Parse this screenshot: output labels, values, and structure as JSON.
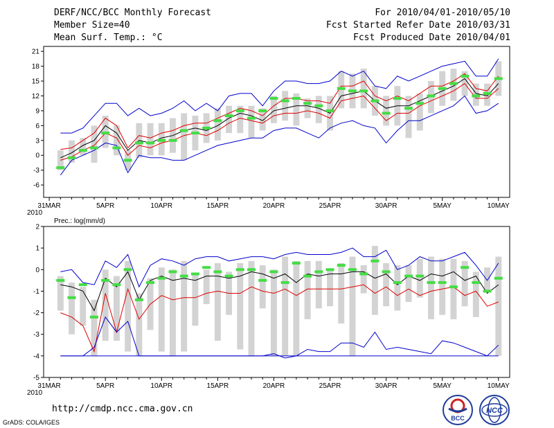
{
  "header": {
    "title": "DERF/NCC/BCC Monthly Forecast",
    "member_size": "Member Size=40",
    "variable": "Mean Surf. Temp.: °C",
    "period": "For 2010/04/01-2010/05/10",
    "started": "Fcst Started Refer Date 2010/03/31",
    "produced": "Fcst Produced Date 2010/04/01"
  },
  "footer": {
    "url": "http://cmdp.ncc.cma.gov.cn",
    "credit": "GrADS: COLA/IGES",
    "logo_left_text": "BCC",
    "logo_right_text": "NCC"
  },
  "colors": {
    "box": "#d3d3d3",
    "max_line": "#0000cc",
    "spread_line": "#dd0000",
    "mean_line": "#000000",
    "obs_marker": "#44dd44"
  },
  "chart_data": [
    {
      "type": "line",
      "title": "Mean Surf. Temp.: °C",
      "x_tick_labels": [
        "31MAR\n2010",
        "5APR",
        "10APR",
        "15APR",
        "20APR",
        "25APR",
        "30APR",
        "5MAY",
        "10MAY"
      ],
      "x_tick_days": [
        0,
        5,
        10,
        15,
        20,
        25,
        30,
        35,
        40
      ],
      "y_ticks": [
        -6,
        -3,
        0,
        3,
        6,
        9,
        12,
        15,
        18,
        21
      ],
      "ylim": [
        -8.5,
        22
      ],
      "xlim": [
        -0.5,
        41
      ],
      "days": [
        1,
        2,
        3,
        4,
        5,
        6,
        7,
        8,
        9,
        10,
        11,
        12,
        13,
        14,
        15,
        16,
        17,
        18,
        19,
        20,
        21,
        22,
        23,
        24,
        25,
        26,
        27,
        28,
        29,
        30,
        31,
        32,
        33,
        34,
        35,
        36,
        37,
        38,
        39,
        40
      ],
      "series": [
        {
          "name": "max",
          "values": [
            4.5,
            4.5,
            5.5,
            8,
            10.5,
            10.5,
            8,
            9.5,
            8,
            8.5,
            9.5,
            11,
            9,
            10.5,
            9,
            12,
            12.5,
            12.5,
            10,
            13,
            15,
            15,
            14.5,
            14.5,
            15,
            17,
            16,
            17,
            14,
            13.5,
            16,
            15,
            16,
            17,
            18,
            18.5,
            19,
            16,
            16,
            19.5
          ]
        },
        {
          "name": "upper",
          "values": [
            1.2,
            1.5,
            3,
            4.5,
            7.5,
            6,
            1.5,
            4,
            3.5,
            4.5,
            5,
            6,
            6.5,
            6.5,
            7.5,
            8.5,
            9.5,
            9,
            8,
            10,
            11.5,
            11.5,
            11,
            11,
            10.5,
            14,
            14,
            15,
            12,
            11,
            12,
            11,
            12.5,
            14,
            14,
            15,
            16.5,
            13.5,
            13,
            16
          ]
        },
        {
          "name": "mean",
          "values": [
            -0.5,
            0.5,
            2,
            3,
            6,
            4.5,
            1,
            3,
            2.5,
            3.5,
            4,
            5,
            5.5,
            5,
            6,
            7.5,
            8.5,
            8,
            7,
            9,
            9.5,
            10,
            10,
            9.5,
            8.5,
            12,
            12.5,
            13,
            11,
            9.5,
            10,
            10,
            11,
            12,
            13,
            14,
            15.5,
            12.5,
            12,
            14.5
          ]
        },
        {
          "name": "lower",
          "values": [
            -1,
            -0.3,
            1,
            2,
            4.5,
            3.5,
            0,
            2,
            1.5,
            2.5,
            3,
            4,
            4.5,
            4,
            5,
            6.5,
            7.5,
            7,
            6.5,
            8,
            8.5,
            8.5,
            9,
            8.5,
            7.5,
            11,
            11.5,
            12,
            9.5,
            7,
            8.5,
            8.5,
            10,
            11,
            12,
            13,
            14.5,
            11.5,
            11.5,
            13.5
          ]
        },
        {
          "name": "min",
          "values": [
            -4,
            -1,
            0,
            1,
            2.5,
            2,
            -3.5,
            0,
            -0.5,
            -0.5,
            -1,
            -1,
            0,
            1,
            2,
            2.5,
            3,
            3.5,
            3.5,
            5,
            5.5,
            5.5,
            4.5,
            3.5,
            5.5,
            6.5,
            7,
            6,
            5.5,
            2.5,
            5,
            7,
            7,
            8,
            9,
            10,
            12,
            8.5,
            9,
            10.5
          ]
        }
      ],
      "box_ranges": [
        [
          -3,
          1
        ],
        [
          -1.5,
          3
        ],
        [
          0,
          3.5
        ],
        [
          -1.5,
          6
        ],
        [
          1.5,
          8
        ],
        [
          0,
          6
        ],
        [
          -3,
          1
        ],
        [
          -0.5,
          6.5
        ],
        [
          0,
          6.5
        ],
        [
          0,
          6.5
        ],
        [
          0.5,
          7.5
        ],
        [
          -1,
          8.5
        ],
        [
          1,
          8
        ],
        [
          2.5,
          8.5
        ],
        [
          3,
          9.5
        ],
        [
          4.5,
          10
        ],
        [
          4.5,
          10
        ],
        [
          3.5,
          10
        ],
        [
          5,
          9.5
        ],
        [
          6.5,
          12
        ],
        [
          7,
          13
        ],
        [
          6,
          12.5
        ],
        [
          7.5,
          11.5
        ],
        [
          6.5,
          12
        ],
        [
          5,
          12
        ],
        [
          9.5,
          17
        ],
        [
          9.5,
          16.5
        ],
        [
          9.5,
          17.5
        ],
        [
          8,
          14
        ],
        [
          6,
          12
        ],
        [
          6,
          14
        ],
        [
          3.5,
          12
        ],
        [
          5,
          12.5
        ],
        [
          8.5,
          15
        ],
        [
          10,
          17
        ],
        [
          11,
          17.5
        ],
        [
          12,
          17
        ],
        [
          10,
          14.5
        ],
        [
          10,
          14.5
        ],
        [
          12,
          19
        ]
      ],
      "observed": [
        -2.5,
        -0.5,
        1,
        1.5,
        4.5,
        1.5,
        -1,
        2.5,
        2.5,
        3,
        3,
        5,
        4.5,
        5.5,
        7,
        8,
        9,
        7.5,
        9,
        11.5,
        11,
        11.5,
        10.5,
        10,
        9,
        13.5,
        13,
        13,
        11,
        8.5,
        11.5,
        9.5,
        10.5,
        12,
        13.5,
        14.5,
        16,
        12,
        12.5,
        15.5
      ]
    },
    {
      "type": "line",
      "title": "Prec.: log(mm/d)",
      "x_tick_labels": [
        "31MAR\n2010",
        "5APR",
        "10APR",
        "15APR",
        "20APR",
        "25APR",
        "30APR",
        "5MAY",
        "10MAY"
      ],
      "x_tick_days": [
        0,
        5,
        10,
        15,
        20,
        25,
        30,
        35,
        40
      ],
      "y_ticks": [
        -5,
        -4,
        -3,
        -2,
        -1,
        0,
        1,
        2
      ],
      "ylim": [
        -5,
        2
      ],
      "xlim": [
        -0.5,
        41
      ],
      "days": [
        1,
        2,
        3,
        4,
        5,
        6,
        7,
        8,
        9,
        10,
        11,
        12,
        13,
        14,
        15,
        16,
        17,
        18,
        19,
        20,
        21,
        22,
        23,
        24,
        25,
        26,
        27,
        28,
        29,
        30,
        31,
        32,
        33,
        34,
        35,
        36,
        37,
        38,
        39,
        40
      ],
      "series": [
        {
          "name": "max",
          "values": [
            -0.1,
            0,
            -0.6,
            -0.7,
            0.4,
            0.1,
            0.7,
            -0.8,
            0.2,
            0.5,
            0.4,
            0.2,
            0.5,
            0.6,
            0.6,
            0.4,
            0.5,
            0.6,
            0.6,
            0.5,
            0.7,
            0.8,
            0.7,
            0.7,
            0.7,
            0.8,
            1,
            0.6,
            0.6,
            0.9,
            0,
            0.2,
            0.6,
            0.4,
            0.4,
            0.6,
            0.8,
            0.2,
            -0.5,
            0.3
          ]
        },
        {
          "name": "mean",
          "values": [
            -0.7,
            -0.8,
            -1,
            -1.9,
            -0.4,
            -0.8,
            -0.1,
            -1.4,
            -0.5,
            -0.3,
            -0.5,
            -0.4,
            -0.5,
            -0.3,
            -0.3,
            -0.4,
            -0.3,
            -0.1,
            -0.2,
            -0.4,
            -0.2,
            -0.6,
            -0.2,
            -0.3,
            -0.2,
            -0.2,
            -0.1,
            -0.1,
            -0.4,
            -0.2,
            -0.7,
            -0.3,
            -0.5,
            -0.2,
            -0.3,
            -0.1,
            -0.5,
            -0.3,
            -1.1,
            -0.7
          ]
        },
        {
          "name": "lower",
          "values": [
            -2,
            -2.2,
            -2.6,
            -3.8,
            -1.1,
            -2.9,
            -0.9,
            -2.3,
            -1.6,
            -1.2,
            -1.4,
            -1.3,
            -1.3,
            -1.1,
            -1,
            -1.1,
            -1.1,
            -0.8,
            -1,
            -1.1,
            -0.9,
            -1.2,
            -0.9,
            -0.9,
            -0.9,
            -0.9,
            -0.8,
            -0.7,
            -1.1,
            -0.8,
            -1.2,
            -0.9,
            -1.2,
            -1,
            -0.9,
            -0.8,
            -1.2,
            -1,
            -1.7,
            -1.5
          ]
        },
        {
          "name": "min",
          "values": [
            -4,
            -4,
            -4,
            -3.6,
            -2.2,
            -2.9,
            -2.4,
            -4,
            -4,
            -4,
            -4,
            -4,
            -4,
            -4,
            -4,
            -4,
            -4,
            -4,
            -4,
            -3.9,
            -4.1,
            -4,
            -3.7,
            -3.8,
            -3.8,
            -3.4,
            -3.4,
            -3.6,
            -2.9,
            -3.7,
            -3.6,
            -3.7,
            -3.8,
            -3.9,
            -3.3,
            -3.4,
            -3.6,
            -3.8,
            -4,
            -3.5
          ]
        },
        {
          "name": "floor",
          "values": [
            -4,
            -4,
            -4,
            -4,
            -4,
            -4,
            -4,
            -4,
            -4,
            -4,
            -4,
            -4,
            -4,
            -4,
            -4,
            -4,
            -4,
            -4,
            -4,
            -4,
            -4,
            -4,
            -4,
            -4,
            -4,
            -4,
            -4,
            -4,
            -4,
            -4,
            -4,
            -4,
            -4,
            -4,
            -4,
            -4,
            -4,
            -4,
            -4,
            -4
          ]
        }
      ],
      "box_ranges": [
        [
          -1.9,
          -0.3
        ],
        [
          -3,
          -0.6
        ],
        [
          -2.6,
          -0.8
        ],
        [
          -4,
          -1.4
        ],
        [
          -3.3,
          0
        ],
        [
          -3.3,
          -0.3
        ],
        [
          -3.8,
          0.4
        ],
        [
          -4,
          -1.1
        ],
        [
          -2.8,
          -0.4
        ],
        [
          -3.8,
          0.1
        ],
        [
          -4,
          0
        ],
        [
          -3.8,
          0.4
        ],
        [
          -2.6,
          -0.2
        ],
        [
          -1.6,
          0
        ],
        [
          -3.3,
          0.3
        ],
        [
          -2.1,
          -0.1
        ],
        [
          -3.7,
          0.3
        ],
        [
          -4,
          0.4
        ],
        [
          -1.8,
          0.2
        ],
        [
          -4,
          0
        ],
        [
          -4,
          0.6
        ],
        [
          -4,
          0.4
        ],
        [
          -2.3,
          0.4
        ],
        [
          -1.8,
          0.4
        ],
        [
          -1.7,
          0
        ],
        [
          -2.5,
          0.3
        ],
        [
          -4,
          0.6
        ],
        [
          -1.1,
          0.2
        ],
        [
          -2.1,
          1.1
        ],
        [
          -1.7,
          0.3
        ],
        [
          -1.9,
          0.2
        ],
        [
          -1.5,
          0.2
        ],
        [
          -1.3,
          0.5
        ],
        [
          -2.3,
          0.6
        ],
        [
          -2.1,
          0.5
        ],
        [
          -2.3,
          0.5
        ],
        [
          -1.7,
          0.4
        ],
        [
          -2.2,
          -0.1
        ],
        [
          -1,
          0.1
        ],
        [
          -4,
          0.6
        ]
      ],
      "observed": [
        -0.5,
        -1.3,
        -0.7,
        -2.2,
        -0.5,
        -0.7,
        0,
        -1.4,
        -0.6,
        -0.4,
        -0.1,
        -0.3,
        -0.2,
        0.1,
        -0.1,
        -0.3,
        0,
        0,
        -0.5,
        -0.1,
        -0.6,
        0.3,
        -0.3,
        -0.1,
        0,
        0.2,
        0,
        -0.2,
        0.4,
        -0.1,
        -0.6,
        -0.3,
        -0.3,
        -0.6,
        -0.6,
        -0.8,
        0.1,
        -0.6,
        -1,
        -0.4
      ]
    }
  ]
}
